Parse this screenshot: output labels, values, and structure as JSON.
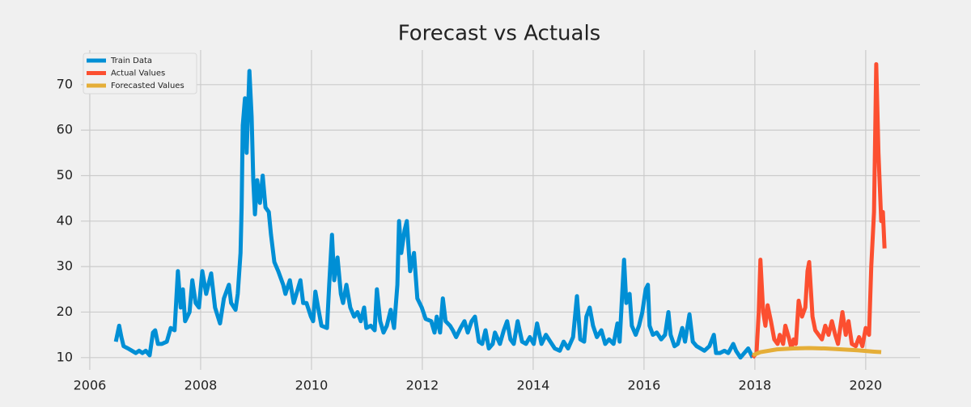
{
  "chart_data": {
    "type": "line",
    "title": "Forecast vs Actuals",
    "xlim": [
      2005.84,
      2020.98
    ],
    "ylim": [
      7.3,
      77.6
    ],
    "xticks": [
      2006,
      2008,
      2010,
      2012,
      2014,
      2016,
      2018,
      2020
    ],
    "yticks": [
      10,
      20,
      30,
      40,
      50,
      60,
      70
    ],
    "grid": true,
    "legend": "upper-left",
    "series": [
      {
        "name": "Train Data",
        "color": "#008fd5",
        "x": [
          2006.47,
          2006.53,
          2006.57,
          2006.61,
          2006.69,
          2006.76,
          2006.83,
          2006.89,
          2006.95,
          2007.01,
          2007.08,
          2007.14,
          2007.18,
          2007.23,
          2007.3,
          2007.39,
          2007.46,
          2007.53,
          2007.59,
          2007.64,
          2007.68,
          2007.72,
          2007.8,
          2007.85,
          2007.91,
          2007.97,
          2008.03,
          2008.1,
          2008.19,
          2008.26,
          2008.35,
          2008.42,
          2008.51,
          2008.55,
          2008.63,
          2008.67,
          2008.72,
          2008.74,
          2008.76,
          2008.8,
          2008.83,
          2008.88,
          2008.92,
          2008.95,
          2008.98,
          2009.02,
          2009.07,
          2009.12,
          2009.17,
          2009.23,
          2009.27,
          2009.33,
          2009.4,
          2009.49,
          2009.53,
          2009.61,
          2009.68,
          2009.8,
          2009.85,
          2009.91,
          2009.99,
          2010.03,
          2010.07,
          2010.12,
          2010.18,
          2010.28,
          2010.32,
          2010.37,
          2010.41,
          2010.47,
          2010.53,
          2010.57,
          2010.63,
          2010.7,
          2010.77,
          2010.83,
          2010.89,
          2010.95,
          2010.99,
          2011.07,
          2011.14,
          2011.18,
          2011.24,
          2011.3,
          2011.36,
          2011.43,
          2011.49,
          2011.55,
          2011.58,
          2011.62,
          2011.68,
          2011.72,
          2011.78,
          2011.85,
          2011.91,
          2011.99,
          2012.06,
          2012.16,
          2012.22,
          2012.26,
          2012.32,
          2012.37,
          2012.42,
          2012.5,
          2012.55,
          2012.61,
          2012.69,
          2012.76,
          2012.82,
          2012.89,
          2012.95,
          2013.02,
          2013.08,
          2013.14,
          2013.2,
          2013.27,
          2013.31,
          2013.4,
          2013.47,
          2013.53,
          2013.59,
          2013.65,
          2013.72,
          2013.8,
          2013.87,
          2013.94,
          2014.01,
          2014.07,
          2014.15,
          2014.23,
          2014.31,
          2014.39,
          2014.48,
          2014.55,
          2014.63,
          2014.72,
          2014.79,
          2014.85,
          2014.92,
          2014.96,
          2015.02,
          2015.08,
          2015.15,
          2015.23,
          2015.3,
          2015.37,
          2015.45,
          2015.52,
          2015.56,
          2015.64,
          2015.68,
          2015.74,
          2015.78,
          2015.85,
          2015.91,
          2015.97,
          2016.03,
          2016.07,
          2016.1,
          2016.16,
          2016.23,
          2016.31,
          2016.38,
          2016.44,
          2016.48,
          2016.55,
          2016.61,
          2016.69,
          2016.74,
          2016.82,
          2016.88,
          2016.95,
          2017.02,
          2017.09,
          2017.18,
          2017.26,
          2017.3,
          2017.37,
          2017.45,
          2017.52,
          2017.61,
          2017.66,
          2017.74,
          2017.81,
          2017.88,
          2017.96
        ],
        "values": [
          13.5,
          17,
          14.5,
          12.5,
          12,
          11.5,
          11,
          11.5,
          11,
          11.5,
          10.5,
          15.5,
          16,
          13,
          13,
          13.5,
          16.5,
          16,
          29,
          21,
          25,
          18,
          20,
          27,
          22,
          21,
          29,
          24,
          28.5,
          21,
          17.5,
          23,
          26,
          22,
          20.5,
          24,
          33,
          43,
          61,
          67,
          55,
          73,
          63,
          49,
          41.5,
          49,
          44,
          50,
          43,
          42,
          37,
          31,
          29,
          26,
          24,
          27,
          22,
          27,
          22,
          22,
          19,
          18,
          24.5,
          21,
          17,
          16.5,
          26,
          37,
          27,
          32,
          24,
          22,
          26,
          21,
          19,
          20,
          18,
          21,
          16.5,
          17,
          16,
          25,
          18,
          15.5,
          17,
          20.5,
          16.5,
          26,
          40,
          33,
          38,
          40,
          29,
          33,
          23,
          21,
          18.5,
          18,
          15.5,
          19,
          15.5,
          23,
          18,
          17,
          16,
          14.5,
          16.5,
          18,
          15.5,
          18,
          19,
          13.5,
          13,
          16,
          12,
          13,
          15.5,
          13,
          16,
          18,
          14,
          13,
          18,
          13.5,
          13,
          14.5,
          13,
          17.5,
          13,
          15,
          13.5,
          12,
          11.5,
          13.5,
          12,
          14.5,
          23.5,
          14,
          13.5,
          19,
          21,
          17,
          14.5,
          16,
          13,
          14,
          13,
          17.5,
          13.5,
          31.5,
          22,
          24,
          17,
          15,
          17,
          20,
          25,
          26,
          17,
          15,
          15.5,
          14,
          15,
          20,
          15,
          12.5,
          13,
          16.5,
          13.5,
          19.5,
          13.5,
          12.5,
          12,
          11.5,
          12.5,
          15,
          11,
          11,
          11.5,
          11,
          13,
          11.5,
          10,
          11,
          12,
          10
        ]
      },
      {
        "name": "Actual Values",
        "color": "#fc4f30",
        "x": [
          2017.96,
          2018.03,
          2018.07,
          2018.1,
          2018.15,
          2018.19,
          2018.23,
          2018.29,
          2018.35,
          2018.41,
          2018.45,
          2018.51,
          2018.55,
          2018.61,
          2018.66,
          2018.7,
          2018.74,
          2018.79,
          2018.85,
          2018.91,
          2018.95,
          2018.98,
          2019.04,
          2019.09,
          2019.15,
          2019.21,
          2019.27,
          2019.33,
          2019.39,
          2019.45,
          2019.5,
          2019.58,
          2019.64,
          2019.69,
          2019.75,
          2019.82,
          2019.88,
          2019.94,
          2020.0,
          2020.06,
          2020.1,
          2020.15,
          2020.19,
          2020.23,
          2020.28,
          2020.31,
          2020.34
        ],
        "values": [
          10,
          11,
          20,
          31.5,
          20,
          17,
          21.5,
          18,
          14,
          13,
          15,
          13,
          17,
          14.5,
          12,
          14,
          13,
          22.5,
          19,
          21,
          29,
          31,
          19,
          16,
          15,
          14,
          17,
          15,
          18,
          15,
          13,
          20,
          15,
          18,
          13,
          12.5,
          14.5,
          12.5,
          16.5,
          15,
          30,
          42,
          74.5,
          55,
          40,
          42,
          34
        ]
      },
      {
        "name": "Forecasted Values",
        "color": "#e5ae38",
        "x": [
          2017.96,
          2018.1,
          2018.4,
          2018.69,
          2018.98,
          2019.27,
          2019.56,
          2019.85,
          2020.15,
          2020.28
        ],
        "values": [
          10.5,
          11.2,
          11.8,
          12,
          12.1,
          12,
          11.8,
          11.6,
          11.3,
          11.2
        ]
      }
    ]
  }
}
